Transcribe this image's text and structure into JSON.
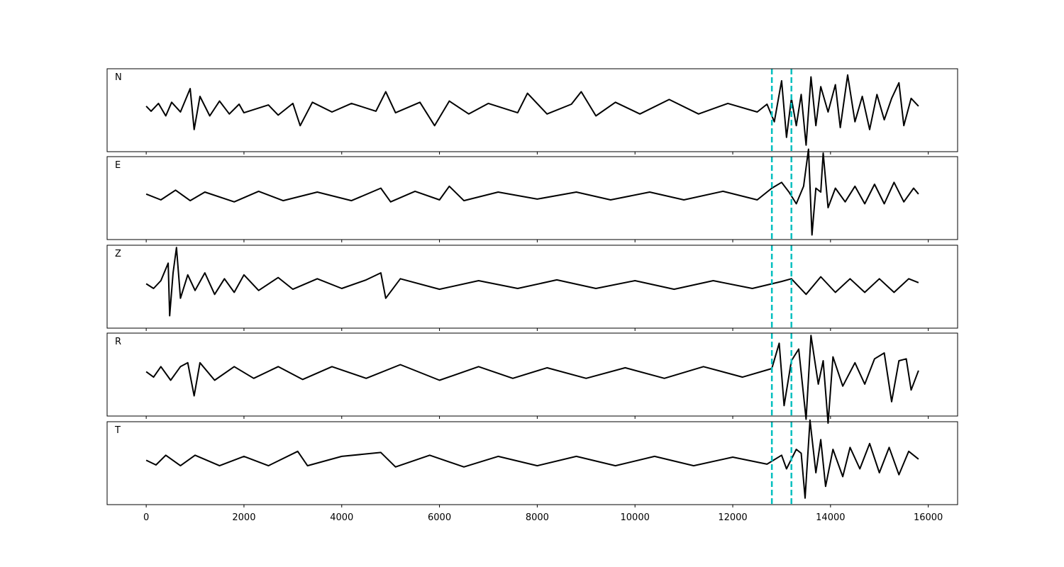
{
  "chart_data": {
    "type": "line",
    "xlim": [
      -800,
      16600
    ],
    "xticks": [
      0,
      2000,
      4000,
      6000,
      8000,
      10000,
      12000,
      14000,
      16000
    ],
    "xtick_labels": [
      "0",
      "2000",
      "4000",
      "6000",
      "8000",
      "10000",
      "12000",
      "14000",
      "16000"
    ],
    "xlabel": "",
    "ylabel": "",
    "grid": false,
    "line_color": "#000000",
    "pick_color": "#00bfbf",
    "picks": [
      12800,
      13200
    ],
    "panels": [
      {
        "label": "N",
        "points": [
          [
            0,
            0.05
          ],
          [
            100,
            -0.08
          ],
          [
            250,
            0.12
          ],
          [
            400,
            -0.2
          ],
          [
            520,
            0.15
          ],
          [
            700,
            -0.1
          ],
          [
            900,
            0.5
          ],
          [
            980,
            -0.55
          ],
          [
            1100,
            0.3
          ],
          [
            1300,
            -0.2
          ],
          [
            1500,
            0.18
          ],
          [
            1700,
            -0.15
          ],
          [
            1900,
            0.1
          ],
          [
            2000,
            -0.12
          ],
          [
            2500,
            0.08
          ],
          [
            2700,
            -0.18
          ],
          [
            3000,
            0.12
          ],
          [
            3150,
            -0.45
          ],
          [
            3400,
            0.15
          ],
          [
            3800,
            -0.1
          ],
          [
            4200,
            0.12
          ],
          [
            4700,
            -0.08
          ],
          [
            4900,
            0.42
          ],
          [
            5100,
            -0.12
          ],
          [
            5600,
            0.15
          ],
          [
            5900,
            -0.45
          ],
          [
            6200,
            0.18
          ],
          [
            6600,
            -0.15
          ],
          [
            7000,
            0.12
          ],
          [
            7600,
            -0.12
          ],
          [
            7800,
            0.38
          ],
          [
            8200,
            -0.15
          ],
          [
            8700,
            0.1
          ],
          [
            8900,
            0.42
          ],
          [
            9200,
            -0.2
          ],
          [
            9600,
            0.15
          ],
          [
            10100,
            -0.15
          ],
          [
            10700,
            0.22
          ],
          [
            11300,
            -0.15
          ],
          [
            11900,
            0.12
          ],
          [
            12500,
            -0.1
          ],
          [
            12700,
            0.1
          ],
          [
            12850,
            -0.35
          ],
          [
            13000,
            0.7
          ],
          [
            13100,
            -0.75
          ],
          [
            13200,
            0.25
          ],
          [
            13300,
            -0.45
          ],
          [
            13400,
            0.35
          ],
          [
            13500,
            -0.95
          ],
          [
            13600,
            0.8
          ],
          [
            13700,
            -0.45
          ],
          [
            13800,
            0.55
          ],
          [
            13950,
            -0.1
          ],
          [
            14100,
            0.6
          ],
          [
            14200,
            -0.5
          ],
          [
            14350,
            0.85
          ],
          [
            14500,
            -0.35
          ],
          [
            14650,
            0.3
          ],
          [
            14800,
            -0.55
          ],
          [
            14950,
            0.35
          ],
          [
            15100,
            -0.3
          ],
          [
            15250,
            0.25
          ],
          [
            15400,
            0.65
          ],
          [
            15500,
            -0.45
          ],
          [
            15650,
            0.25
          ],
          [
            15800,
            0.05
          ]
        ]
      },
      {
        "label": "E",
        "points": [
          [
            0,
            0.05
          ],
          [
            300,
            -0.1
          ],
          [
            600,
            0.15
          ],
          [
            900,
            -0.12
          ],
          [
            1200,
            0.1
          ],
          [
            1800,
            -0.15
          ],
          [
            2300,
            0.12
          ],
          [
            2800,
            -0.12
          ],
          [
            3500,
            0.1
          ],
          [
            4200,
            -0.12
          ],
          [
            4800,
            0.2
          ],
          [
            5000,
            -0.15
          ],
          [
            5500,
            0.12
          ],
          [
            6000,
            -0.1
          ],
          [
            6200,
            0.25
          ],
          [
            6500,
            -0.12
          ],
          [
            7200,
            0.1
          ],
          [
            8000,
            -0.08
          ],
          [
            8800,
            0.1
          ],
          [
            9500,
            -0.1
          ],
          [
            10300,
            0.1
          ],
          [
            11000,
            -0.1
          ],
          [
            11800,
            0.12
          ],
          [
            12500,
            -0.1
          ],
          [
            12800,
            0.2
          ],
          [
            13000,
            0.35
          ],
          [
            13150,
            0.1
          ],
          [
            13300,
            -0.2
          ],
          [
            13450,
            0.25
          ],
          [
            13550,
            1.2
          ],
          [
            13620,
            -1.0
          ],
          [
            13700,
            0.2
          ],
          [
            13800,
            0.1
          ],
          [
            13850,
            1.1
          ],
          [
            13950,
            -0.3
          ],
          [
            14100,
            0.2
          ],
          [
            14300,
            -0.15
          ],
          [
            14500,
            0.25
          ],
          [
            14700,
            -0.2
          ],
          [
            14900,
            0.3
          ],
          [
            15100,
            -0.2
          ],
          [
            15300,
            0.35
          ],
          [
            15500,
            -0.15
          ],
          [
            15700,
            0.2
          ],
          [
            15800,
            0.05
          ]
        ]
      },
      {
        "label": "Z",
        "points": [
          [
            0,
            0.02
          ],
          [
            150,
            -0.1
          ],
          [
            300,
            0.1
          ],
          [
            450,
            0.55
          ],
          [
            480,
            -0.8
          ],
          [
            550,
            0.3
          ],
          [
            620,
            0.95
          ],
          [
            700,
            -0.35
          ],
          [
            850,
            0.25
          ],
          [
            1000,
            -0.15
          ],
          [
            1200,
            0.3
          ],
          [
            1400,
            -0.25
          ],
          [
            1600,
            0.15
          ],
          [
            1800,
            -0.2
          ],
          [
            2000,
            0.25
          ],
          [
            2300,
            -0.15
          ],
          [
            2700,
            0.18
          ],
          [
            3000,
            -0.12
          ],
          [
            3500,
            0.15
          ],
          [
            4000,
            -0.1
          ],
          [
            4500,
            0.12
          ],
          [
            4800,
            0.3
          ],
          [
            4900,
            -0.35
          ],
          [
            5200,
            0.15
          ],
          [
            6000,
            -0.12
          ],
          [
            6800,
            0.1
          ],
          [
            7600,
            -0.1
          ],
          [
            8400,
            0.12
          ],
          [
            9200,
            -0.1
          ],
          [
            10000,
            0.1
          ],
          [
            10800,
            -0.12
          ],
          [
            11600,
            0.1
          ],
          [
            12400,
            -0.1
          ],
          [
            13000,
            0.08
          ],
          [
            13200,
            0.15
          ],
          [
            13500,
            -0.25
          ],
          [
            13800,
            0.2
          ],
          [
            14100,
            -0.2
          ],
          [
            14400,
            0.15
          ],
          [
            14700,
            -0.2
          ],
          [
            15000,
            0.15
          ],
          [
            15300,
            -0.2
          ],
          [
            15600,
            0.15
          ],
          [
            15800,
            0.05
          ]
        ]
      },
      {
        "label": "R",
        "points": [
          [
            0,
            0.02
          ],
          [
            150,
            -0.12
          ],
          [
            300,
            0.15
          ],
          [
            500,
            -0.2
          ],
          [
            700,
            0.15
          ],
          [
            850,
            0.25
          ],
          [
            980,
            -0.6
          ],
          [
            1100,
            0.25
          ],
          [
            1400,
            -0.2
          ],
          [
            1800,
            0.15
          ],
          [
            2200,
            -0.15
          ],
          [
            2700,
            0.15
          ],
          [
            3200,
            -0.18
          ],
          [
            3800,
            0.15
          ],
          [
            4500,
            -0.15
          ],
          [
            5200,
            0.2
          ],
          [
            6000,
            -0.2
          ],
          [
            6800,
            0.15
          ],
          [
            7500,
            -0.15
          ],
          [
            8200,
            0.12
          ],
          [
            9000,
            -0.15
          ],
          [
            9800,
            0.12
          ],
          [
            10600,
            -0.15
          ],
          [
            11400,
            0.15
          ],
          [
            12200,
            -0.12
          ],
          [
            12800,
            0.1
          ],
          [
            12950,
            0.75
          ],
          [
            13050,
            -0.85
          ],
          [
            13200,
            0.3
          ],
          [
            13350,
            0.6
          ],
          [
            13500,
            -1.2
          ],
          [
            13600,
            0.95
          ],
          [
            13750,
            -0.3
          ],
          [
            13850,
            0.3
          ],
          [
            13950,
            -1.3
          ],
          [
            14050,
            0.4
          ],
          [
            14250,
            -0.35
          ],
          [
            14500,
            0.25
          ],
          [
            14700,
            -0.3
          ],
          [
            14900,
            0.35
          ],
          [
            15100,
            0.5
          ],
          [
            15250,
            -0.75
          ],
          [
            15400,
            0.3
          ],
          [
            15550,
            0.35
          ],
          [
            15650,
            -0.45
          ],
          [
            15800,
            0.05
          ]
        ]
      },
      {
        "label": "T",
        "points": [
          [
            0,
            0.02
          ],
          [
            200,
            -0.1
          ],
          [
            400,
            0.15
          ],
          [
            700,
            -0.12
          ],
          [
            1000,
            0.15
          ],
          [
            1500,
            -0.12
          ],
          [
            2000,
            0.12
          ],
          [
            2500,
            -0.12
          ],
          [
            3100,
            0.25
          ],
          [
            3300,
            -0.12
          ],
          [
            4000,
            0.12
          ],
          [
            4800,
            0.22
          ],
          [
            5100,
            -0.15
          ],
          [
            5800,
            0.15
          ],
          [
            6500,
            -0.15
          ],
          [
            7200,
            0.12
          ],
          [
            8000,
            -0.12
          ],
          [
            8800,
            0.12
          ],
          [
            9600,
            -0.12
          ],
          [
            10400,
            0.12
          ],
          [
            11200,
            -0.12
          ],
          [
            12000,
            0.1
          ],
          [
            12700,
            -0.08
          ],
          [
            13000,
            0.15
          ],
          [
            13100,
            -0.2
          ],
          [
            13300,
            0.3
          ],
          [
            13400,
            0.2
          ],
          [
            13480,
            -0.95
          ],
          [
            13580,
            1.05
          ],
          [
            13700,
            -0.3
          ],
          [
            13800,
            0.55
          ],
          [
            13900,
            -0.65
          ],
          [
            14050,
            0.3
          ],
          [
            14250,
            -0.4
          ],
          [
            14400,
            0.35
          ],
          [
            14600,
            -0.2
          ],
          [
            14800,
            0.45
          ],
          [
            15000,
            -0.3
          ],
          [
            15200,
            0.35
          ],
          [
            15400,
            -0.35
          ],
          [
            15600,
            0.25
          ],
          [
            15800,
            0.05
          ]
        ]
      }
    ]
  }
}
